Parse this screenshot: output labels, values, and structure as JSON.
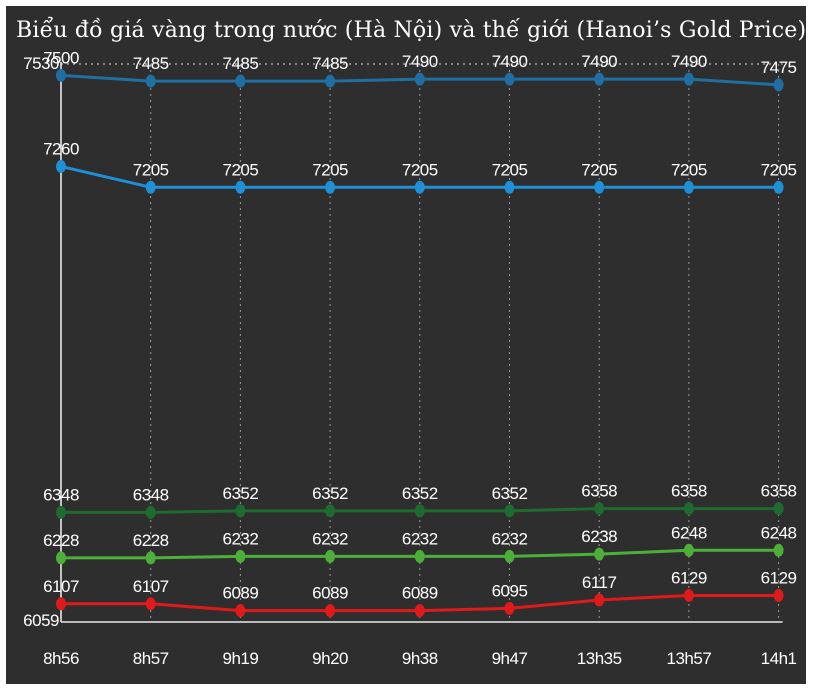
{
  "chart_data": {
    "type": "line",
    "title": "Biểu đồ giá vàng trong nước (Hà Nội) và thế giới (Hanoi’s Gold Price)",
    "xlabel": "",
    "ylabel": "",
    "categories": [
      "8h56",
      "8h57",
      "9h19",
      "9h20",
      "9h38",
      "9h47",
      "13h35",
      "13h57",
      "14h1"
    ],
    "ylim": [
      6059,
      7530
    ],
    "y_tick_labels": [
      "7530",
      "6059"
    ],
    "grid": "vertical dotted lines at each category, dotted line at top",
    "legend": "none",
    "series": [
      {
        "color": "#1f6fa3",
        "values": [
          7500,
          7485,
          7485,
          7485,
          7490,
          7490,
          7490,
          7490,
          7475
        ],
        "labels": [
          "7500",
          "7485",
          "7485",
          "7485",
          "7490",
          "7490",
          "7490",
          "7490",
          "7475"
        ]
      },
      {
        "color": "#1e90d8",
        "values": [
          7260,
          7205,
          7205,
          7205,
          7205,
          7205,
          7205,
          7205,
          7205
        ],
        "labels": [
          "7260",
          "7205",
          "7205",
          "7205",
          "7205",
          "7205",
          "7205",
          "7205",
          "7205"
        ]
      },
      {
        "color": "#1e6b30",
        "values": [
          6348,
          6348,
          6352,
          6352,
          6352,
          6352,
          6358,
          6358,
          6358
        ],
        "labels": [
          "6348",
          "6348",
          "6352",
          "6352",
          "6352",
          "6352",
          "6358",
          "6358",
          "6358"
        ]
      },
      {
        "color": "#4caf3a",
        "values": [
          6228,
          6228,
          6232,
          6232,
          6232,
          6232,
          6238,
          6248,
          6248
        ],
        "labels": [
          "6228",
          "6228",
          "6232",
          "6232",
          "6232",
          "6232",
          "6238",
          "6248",
          "6248"
        ]
      },
      {
        "color": "#e01a1a",
        "values": [
          6107,
          6107,
          6089,
          6089,
          6089,
          6095,
          6117,
          6129,
          6129
        ],
        "labels": [
          "6107",
          "6107",
          "6089",
          "6089",
          "6089",
          "6095",
          "6117",
          "6129",
          "6129"
        ]
      }
    ]
  }
}
